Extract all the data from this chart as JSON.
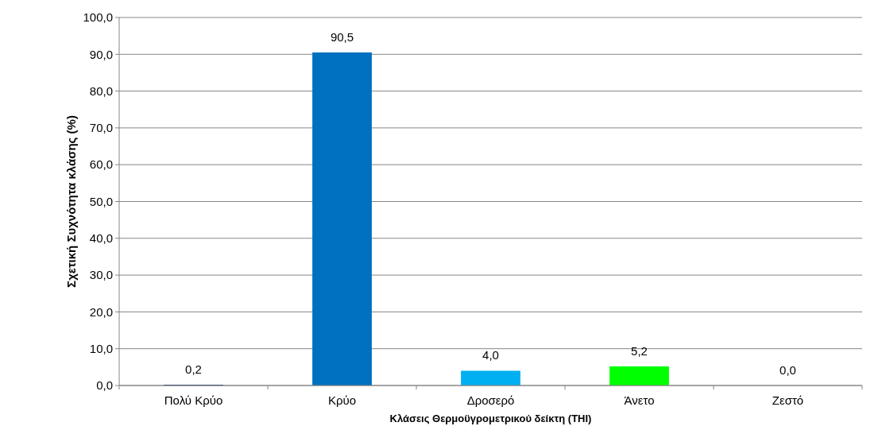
{
  "chart_data": {
    "type": "bar",
    "xlabel": "Κλάσεις Θερμοϋγρομετρικού  δείκτη (THI)",
    "ylabel": "Σχετική Συχνότητα κλάσης (%)",
    "categories": [
      "Πολύ Κρύο",
      "Κρύο",
      "Δροσερό",
      "Άνετο",
      "Ζεστό"
    ],
    "values": [
      0.2,
      90.5,
      4.0,
      5.2,
      0.0
    ],
    "colors": [
      "#002060",
      "#0070c0",
      "#00b0f0",
      "#00ff00",
      "#ff0000"
    ],
    "value_labels": [
      "0,2",
      "90,5",
      "4,0",
      "5,2",
      "0,0"
    ],
    "ylim": [
      0,
      100
    ],
    "yticks": [
      {
        "value": 0,
        "label": "0,0"
      },
      {
        "value": 10,
        "label": "10,0"
      },
      {
        "value": 20,
        "label": "20,0"
      },
      {
        "value": 30,
        "label": "30,0"
      },
      {
        "value": 40,
        "label": "40,0"
      },
      {
        "value": 50,
        "label": "50,0"
      },
      {
        "value": 60,
        "label": "60,0"
      },
      {
        "value": 70,
        "label": "70,0"
      },
      {
        "value": 80,
        "label": "80,0"
      },
      {
        "value": 90,
        "label": "90,0"
      },
      {
        "value": 100,
        "label": "100,0"
      }
    ],
    "grid": "y"
  }
}
